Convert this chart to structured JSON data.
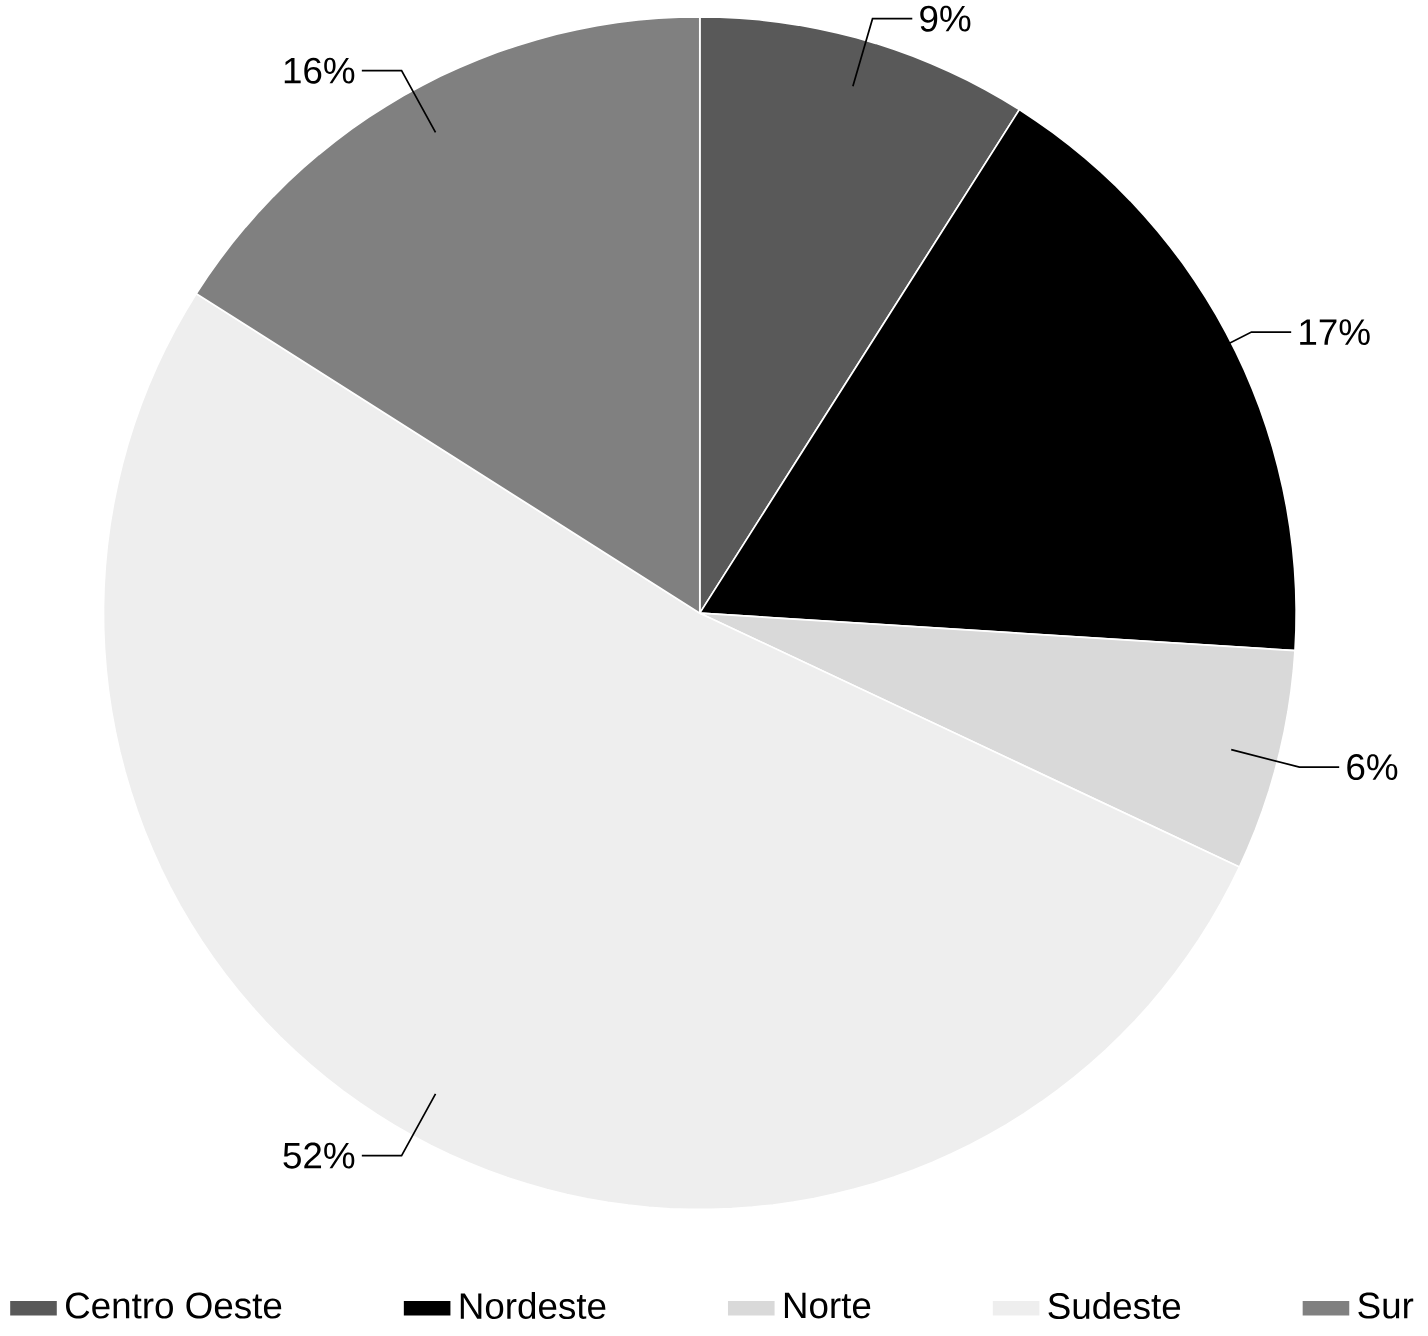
{
  "chart_data": {
    "type": "pie",
    "categories": [
      "Centro Oeste",
      "Nordeste",
      "Norte",
      "Sudeste",
      "Sur"
    ],
    "values": [
      9,
      17,
      6,
      52,
      16
    ],
    "colors": [
      "#595959",
      "#000000",
      "#d9d9d9",
      "#eeeeee",
      "#808080"
    ],
    "value_labels": [
      "9%",
      "17%",
      "6%",
      "52%",
      "16%"
    ],
    "legend": "bottom"
  }
}
